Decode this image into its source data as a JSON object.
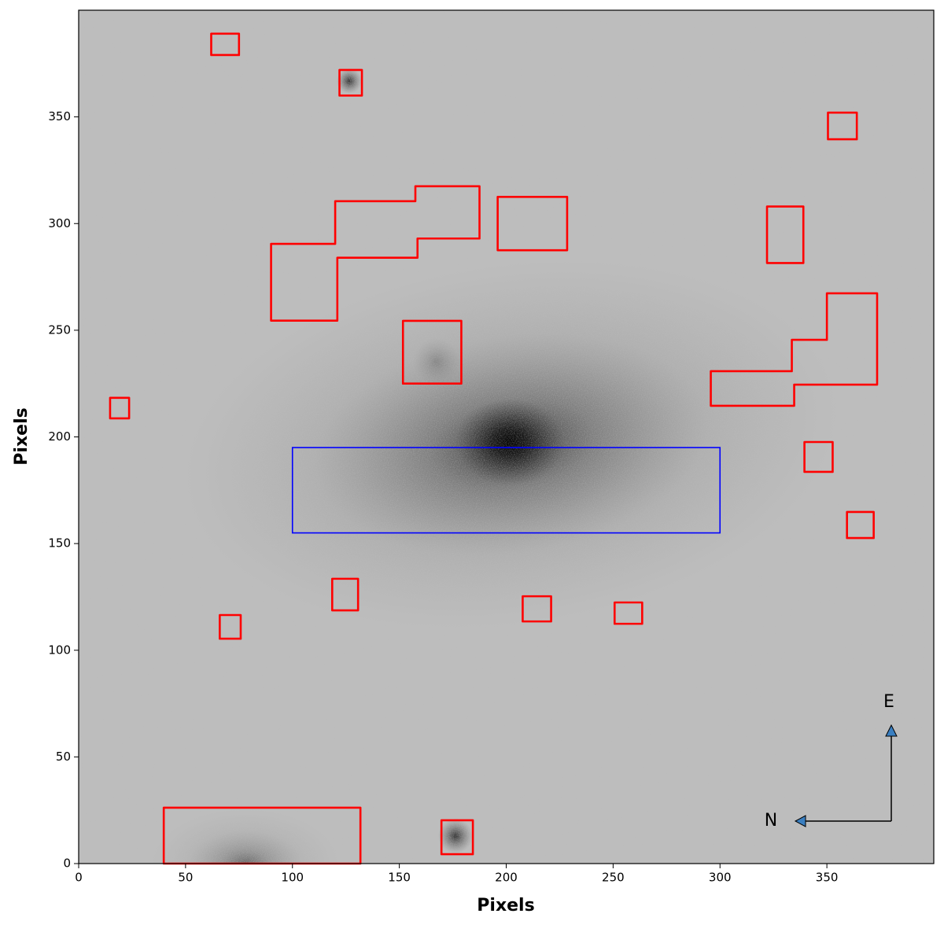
{
  "chart_data": {
    "type": "image",
    "xlabel": "Pixels",
    "ylabel": "Pixels",
    "xlim": [
      0,
      400
    ],
    "ylim": [
      0,
      400
    ],
    "xticks": [
      0,
      50,
      100,
      150,
      200,
      250,
      300,
      350
    ],
    "yticks": [
      0,
      50,
      100,
      150,
      200,
      250,
      300,
      350
    ],
    "region_color": "#ff0000",
    "regions": [
      {
        "x": [
          62,
          75,
          75,
          62
        ],
        "y": [
          379,
          379,
          389,
          389
        ]
      },
      {
        "x": [
          122,
          132.5,
          132.5,
          122
        ],
        "y": [
          360,
          360,
          372,
          372
        ]
      },
      {
        "x": [
          350.5,
          364,
          364,
          350.5
        ],
        "y": [
          339.5,
          339.5,
          352,
          352
        ]
      },
      {
        "x": [
          90,
          120,
          120,
          157.5,
          157.5,
          187.5,
          187.5,
          158.5,
          158.5,
          121,
          121,
          90
        ],
        "y": [
          290.5,
          290.5,
          310.5,
          310.5,
          317.5,
          317.5,
          293,
          293,
          284,
          284,
          254.5,
          254.5
        ]
      },
      {
        "x": [
          196,
          228.5,
          228.5,
          196
        ],
        "y": [
          287.5,
          287.5,
          312.5,
          312.5
        ]
      },
      {
        "x": [
          322,
          339,
          339,
          322
        ],
        "y": [
          281.5,
          281.5,
          308,
          308
        ]
      },
      {
        "x": [
          350,
          373.5,
          373.5,
          334.7,
          334.7,
          295.7,
          295.7,
          333.6,
          333.6,
          350
        ],
        "y": [
          267.3,
          267.3,
          224.5,
          224.5,
          214.6,
          214.6,
          230.8,
          230.8,
          245.5,
          245.5
        ]
      },
      {
        "x": [
          151.7,
          179,
          179,
          151.7
        ],
        "y": [
          225,
          225,
          254.4,
          254.4
        ]
      },
      {
        "x": [
          14.7,
          23.6,
          23.6,
          14.7
        ],
        "y": [
          208.7,
          208.7,
          218.3,
          218.3
        ]
      },
      {
        "x": [
          339.5,
          352.7,
          352.7,
          339.5
        ],
        "y": [
          183.6,
          183.6,
          197.6,
          197.6
        ]
      },
      {
        "x": [
          359.4,
          371.9,
          371.9,
          359.4
        ],
        "y": [
          152.6,
          152.6,
          164.8,
          164.8
        ]
      },
      {
        "x": [
          118.6,
          130.7,
          130.7,
          118.6
        ],
        "y": [
          118.7,
          118.7,
          133.5,
          133.5
        ]
      },
      {
        "x": [
          66,
          75.8,
          75.8,
          66
        ],
        "y": [
          105.4,
          105.4,
          116.5,
          116.5
        ]
      },
      {
        "x": [
          207.7,
          221,
          221,
          207.7
        ],
        "y": [
          113.5,
          113.5,
          125.3,
          125.3
        ]
      },
      {
        "x": [
          250.7,
          263.6,
          263.6,
          250.7
        ],
        "y": [
          112.4,
          112.4,
          122.4,
          122.4
        ]
      },
      {
        "x": [
          39.8,
          39.8,
          131.8,
          131.8
        ],
        "y": [
          0,
          26.2,
          26.2,
          0
        ]
      },
      {
        "x": [
          169.7,
          184.4,
          184.4,
          169.7
        ],
        "y": [
          4.4,
          4.4,
          20.3,
          20.3
        ]
      }
    ],
    "slit": {
      "x": [
        100,
        300
      ],
      "y": [
        155,
        195
      ],
      "color": "#0000ff"
    },
    "compass": {
      "north": "N",
      "east": "E"
    }
  }
}
